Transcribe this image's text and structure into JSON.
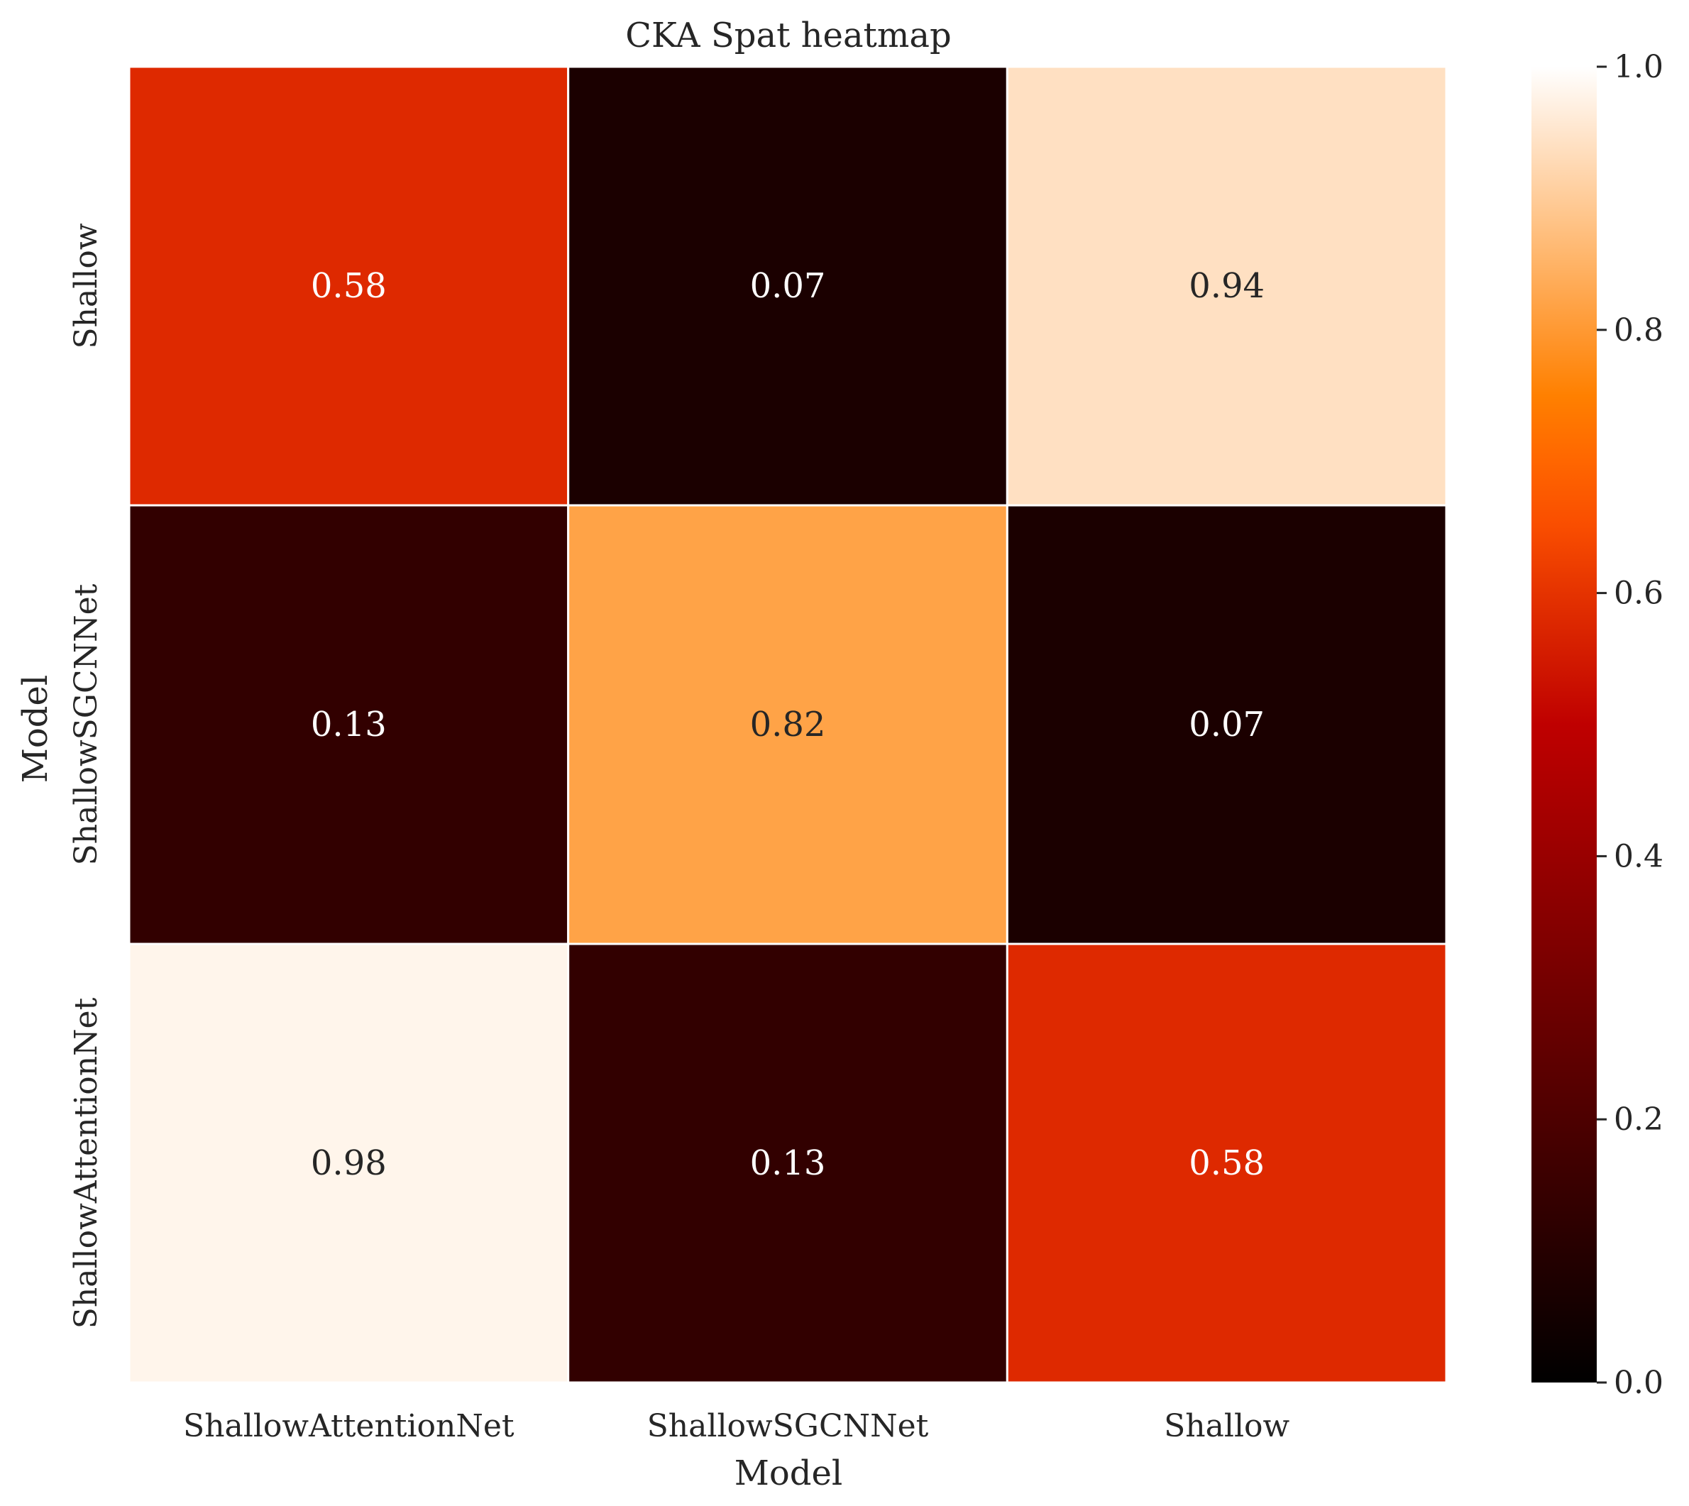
{
  "chart_data": {
    "type": "heatmap",
    "title": "CKA Spat heatmap",
    "xlabel": "Model",
    "ylabel": "Model",
    "x_categories": [
      "ShallowAttentionNet",
      "ShallowSGCNNet",
      "Shallow"
    ],
    "y_categories": [
      "Shallow",
      "ShallowSGCNNet",
      "ShallowAttentionNet"
    ],
    "values": [
      [
        0.58,
        0.07,
        0.94
      ],
      [
        0.13,
        0.82,
        0.07
      ],
      [
        0.98,
        0.13,
        0.58
      ]
    ],
    "colormap": "gist_heat",
    "colorbar": {
      "range": [
        0.0,
        1.0
      ],
      "ticks": [
        "0.0",
        "0.2",
        "0.4",
        "0.6",
        "0.8",
        "1.0"
      ]
    },
    "grid": false
  }
}
